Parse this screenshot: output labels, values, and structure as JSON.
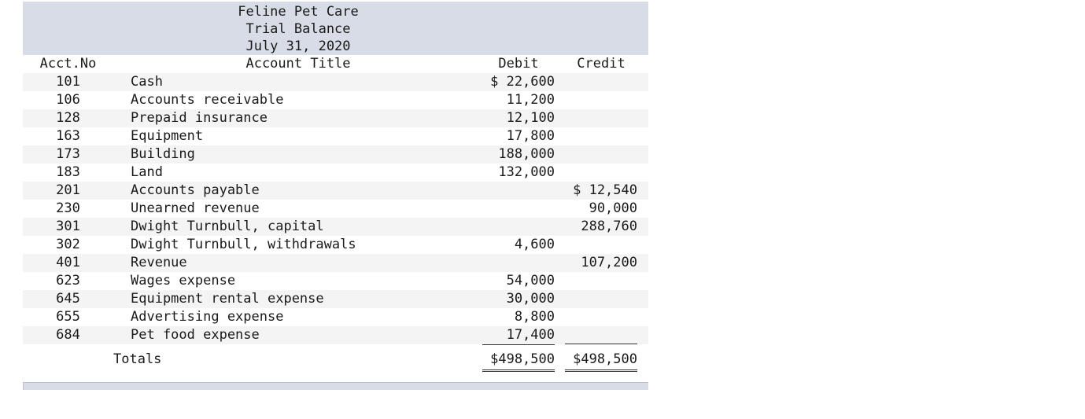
{
  "header": {
    "company": "Feline Pet Care",
    "statement": "Trial Balance",
    "date": "July 31, 2020"
  },
  "columns": {
    "acct_no": "Acct.No",
    "account_title": "Account Title",
    "debit": "Debit",
    "credit": "Credit"
  },
  "rows": [
    {
      "no": "101",
      "title": "Cash",
      "debit": "$ 22,600",
      "credit": ""
    },
    {
      "no": "106",
      "title": "Accounts receivable",
      "debit": "11,200",
      "credit": ""
    },
    {
      "no": "128",
      "title": "Prepaid insurance",
      "debit": "12,100",
      "credit": ""
    },
    {
      "no": "163",
      "title": "Equipment",
      "debit": "17,800",
      "credit": ""
    },
    {
      "no": "173",
      "title": "Building",
      "debit": "188,000",
      "credit": ""
    },
    {
      "no": "183",
      "title": "Land",
      "debit": "132,000",
      "credit": ""
    },
    {
      "no": "201",
      "title": "Accounts payable",
      "debit": "",
      "credit": "$ 12,540"
    },
    {
      "no": "230",
      "title": "Unearned revenue",
      "debit": "",
      "credit": "90,000"
    },
    {
      "no": "301",
      "title": "Dwight Turnbull, capital",
      "debit": "",
      "credit": "288,760"
    },
    {
      "no": "302",
      "title": "Dwight Turnbull, withdrawals",
      "debit": "4,600",
      "credit": ""
    },
    {
      "no": "401",
      "title": "Revenue",
      "debit": "",
      "credit": "107,200"
    },
    {
      "no": "623",
      "title": "Wages expense",
      "debit": "54,000",
      "credit": ""
    },
    {
      "no": "645",
      "title": "Equipment rental expense",
      "debit": "30,000",
      "credit": ""
    },
    {
      "no": "655",
      "title": "Advertising expense",
      "debit": "8,800",
      "credit": ""
    },
    {
      "no": "684",
      "title": "Pet food expense",
      "debit": "17,400",
      "credit": ""
    }
  ],
  "totals": {
    "label": "Totals",
    "debit": "$498,500",
    "credit": "$498,500"
  }
}
